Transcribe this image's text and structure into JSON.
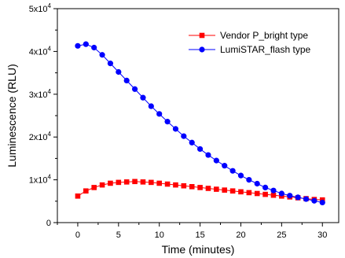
{
  "chart_data": {
    "type": "line",
    "xlabel": "Time (minutes)",
    "ylabel": "Luminescence (RLU)",
    "xlim": [
      -2.5,
      32
    ],
    "ylim": [
      0,
      50000
    ],
    "x_ticks": [
      0,
      5,
      10,
      15,
      20,
      25,
      30
    ],
    "x_tick_labels": [
      "0",
      "5",
      "10",
      "15",
      "20",
      "25",
      "30"
    ],
    "y_ticks": [
      0,
      10000,
      20000,
      30000,
      40000,
      50000
    ],
    "y_tick_labels": [
      {
        "base": "0",
        "exp": ""
      },
      {
        "base": "1x10",
        "exp": "4"
      },
      {
        "base": "2x10",
        "exp": "4"
      },
      {
        "base": "3x10",
        "exp": "4"
      },
      {
        "base": "4x10",
        "exp": "4"
      },
      {
        "base": "5x10",
        "exp": "4"
      }
    ],
    "legend_position": "top-right",
    "grid": false,
    "x": [
      0,
      1,
      2,
      3,
      4,
      5,
      6,
      7,
      8,
      9,
      10,
      11,
      12,
      13,
      14,
      15,
      16,
      17,
      18,
      19,
      20,
      21,
      22,
      23,
      24,
      25,
      26,
      27,
      28,
      29,
      30
    ],
    "series": [
      {
        "name": "Vendor P_bright type",
        "color": "#ff0000",
        "marker": "square",
        "values": [
          6200,
          7400,
          8200,
          8800,
          9200,
          9400,
          9500,
          9600,
          9500,
          9400,
          9200,
          9000,
          8800,
          8600,
          8400,
          8200,
          8000,
          7800,
          7600,
          7400,
          7200,
          7000,
          6800,
          6600,
          6400,
          6200,
          6000,
          5800,
          5600,
          5400,
          5300
        ]
      },
      {
        "name": "LumiSTAR_flash type",
        "color": "#0000ff",
        "marker": "circle",
        "values": [
          41300,
          41700,
          40900,
          39200,
          37200,
          35200,
          33200,
          31200,
          29200,
          27200,
          25400,
          23600,
          21900,
          20200,
          18700,
          17200,
          15800,
          14500,
          13300,
          12100,
          11000,
          10000,
          9100,
          8200,
          7500,
          6800,
          6300,
          5900,
          5500,
          5100,
          4700
        ]
      }
    ]
  }
}
